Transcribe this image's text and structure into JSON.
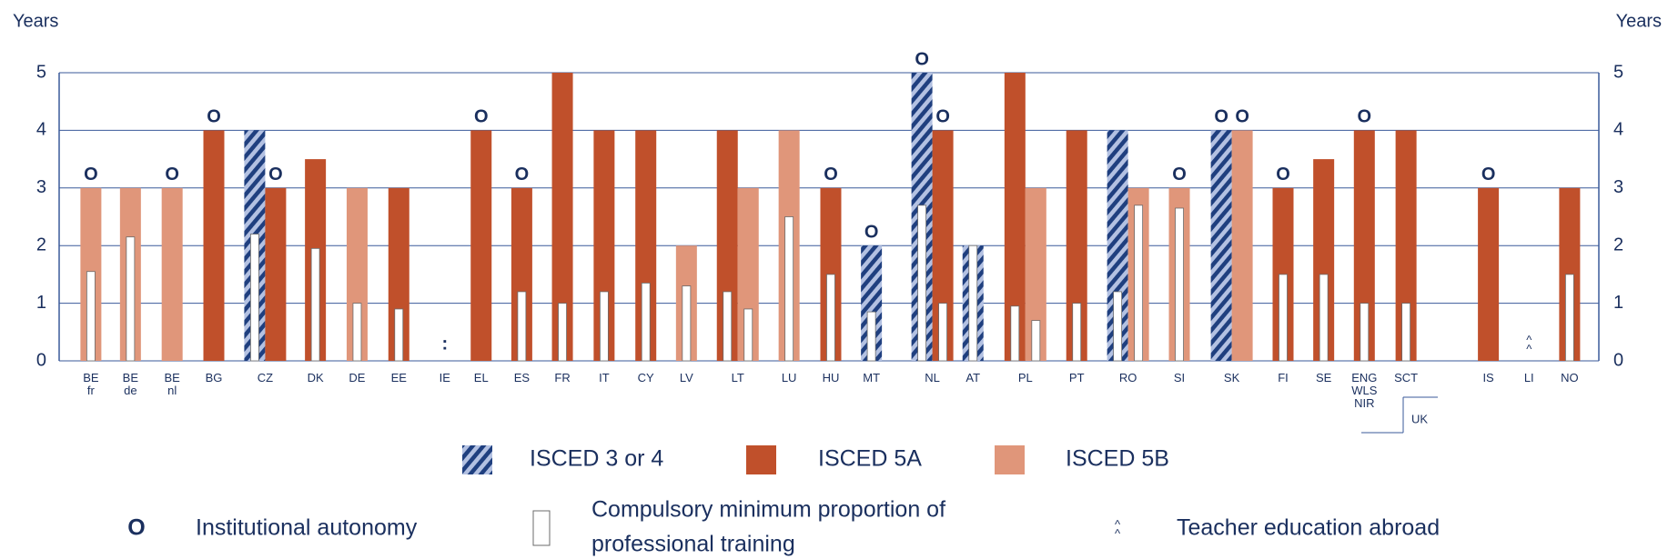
{
  "chart_data": {
    "type": "bar",
    "y_label": "Years",
    "categories": [
      "BE fr",
      "BE de",
      "BE nl",
      "BG",
      "CZ",
      "DK",
      "DE",
      "EE",
      "IE",
      "EL",
      "ES",
      "FR",
      "IT",
      "CY",
      "LV",
      "LT",
      "LU",
      "HU",
      "MT",
      "NL",
      "AT",
      "PL",
      "PT",
      "RO",
      "SI",
      "SK",
      "FI",
      "SE",
      "ENG WLS NIR",
      "SCT",
      "IS",
      "LI",
      "NO"
    ],
    "ylim": [
      0,
      5
    ],
    "yticks": [
      0,
      1,
      2,
      3,
      4,
      5
    ],
    "grid": true,
    "series": [
      {
        "name": "ISCED 3 or 4",
        "color": "#1f3f7f",
        "hatch": true,
        "values": [
          null,
          null,
          null,
          null,
          4,
          null,
          null,
          null,
          null,
          null,
          null,
          null,
          null,
          null,
          null,
          null,
          null,
          null,
          2,
          5,
          2,
          null,
          null,
          4,
          null,
          4,
          null,
          null,
          null,
          null,
          null,
          null,
          null
        ],
        "training": [
          null,
          null,
          null,
          null,
          2.2,
          null,
          null,
          null,
          null,
          null,
          null,
          null,
          null,
          null,
          null,
          null,
          null,
          null,
          0.85,
          2.7,
          2,
          null,
          null,
          1.2,
          null,
          null,
          null,
          null,
          null,
          null,
          null,
          null,
          null
        ],
        "autonomy": [
          false,
          false,
          false,
          false,
          false,
          false,
          false,
          false,
          false,
          false,
          false,
          false,
          false,
          false,
          false,
          false,
          false,
          false,
          true,
          true,
          false,
          false,
          false,
          false,
          false,
          true,
          false,
          false,
          false,
          false,
          false,
          false,
          false
        ]
      },
      {
        "name": "ISCED 5A",
        "color": "#c0502b",
        "values": [
          null,
          null,
          null,
          4,
          3,
          3.5,
          null,
          3,
          null,
          4,
          3,
          5,
          4,
          4,
          null,
          4,
          null,
          3,
          null,
          4,
          null,
          5,
          4,
          null,
          null,
          null,
          3,
          3.5,
          4,
          4,
          3,
          null,
          3
        ],
        "training": [
          null,
          null,
          null,
          null,
          null,
          1.95,
          null,
          0.9,
          null,
          null,
          1.2,
          1,
          1.2,
          1.35,
          null,
          1.2,
          null,
          1.5,
          null,
          1,
          null,
          0.95,
          1,
          null,
          null,
          null,
          1.5,
          1.5,
          1,
          1,
          null,
          null,
          1.5
        ],
        "autonomy": [
          false,
          false,
          false,
          true,
          true,
          false,
          false,
          false,
          false,
          true,
          true,
          false,
          false,
          false,
          false,
          false,
          false,
          true,
          false,
          true,
          false,
          false,
          false,
          false,
          false,
          false,
          true,
          false,
          true,
          false,
          true,
          false,
          false
        ]
      },
      {
        "name": "ISCED 5B",
        "color": "#e0967a",
        "values": [
          3,
          3,
          3,
          null,
          null,
          null,
          3,
          null,
          null,
          null,
          null,
          null,
          null,
          null,
          2,
          3,
          4,
          null,
          null,
          null,
          null,
          3,
          null,
          3,
          3,
          4,
          null,
          null,
          null,
          null,
          null,
          null,
          null
        ],
        "training": [
          1.55,
          2.15,
          null,
          null,
          null,
          null,
          1,
          null,
          null,
          null,
          null,
          null,
          null,
          null,
          1.3,
          0.9,
          2.5,
          null,
          null,
          null,
          null,
          0.7,
          null,
          2.7,
          2.65,
          null,
          null,
          null,
          null,
          null,
          null,
          null,
          null
        ],
        "autonomy": [
          true,
          false,
          true,
          false,
          false,
          false,
          false,
          false,
          false,
          false,
          false,
          false,
          false,
          false,
          false,
          false,
          false,
          false,
          false,
          false,
          false,
          false,
          false,
          false,
          true,
          true,
          false,
          false,
          false,
          false,
          false,
          false,
          false
        ]
      }
    ],
    "category_symbols": [
      null,
      null,
      null,
      null,
      null,
      null,
      null,
      null,
      ":",
      null,
      null,
      null,
      null,
      null,
      null,
      null,
      null,
      null,
      null,
      null,
      null,
      null,
      null,
      null,
      null,
      null,
      null,
      null,
      null,
      null,
      null,
      "^",
      null
    ],
    "group_label": "UK",
    "legend_notes": [
      {
        "symbol": "O",
        "label": [
          "Institutional autonomy"
        ]
      },
      {
        "label": [
          "Compulsory minimum proportion of",
          "professional training"
        ]
      },
      {
        "symbol": "^",
        "label": [
          "Teacher education abroad"
        ]
      }
    ]
  }
}
